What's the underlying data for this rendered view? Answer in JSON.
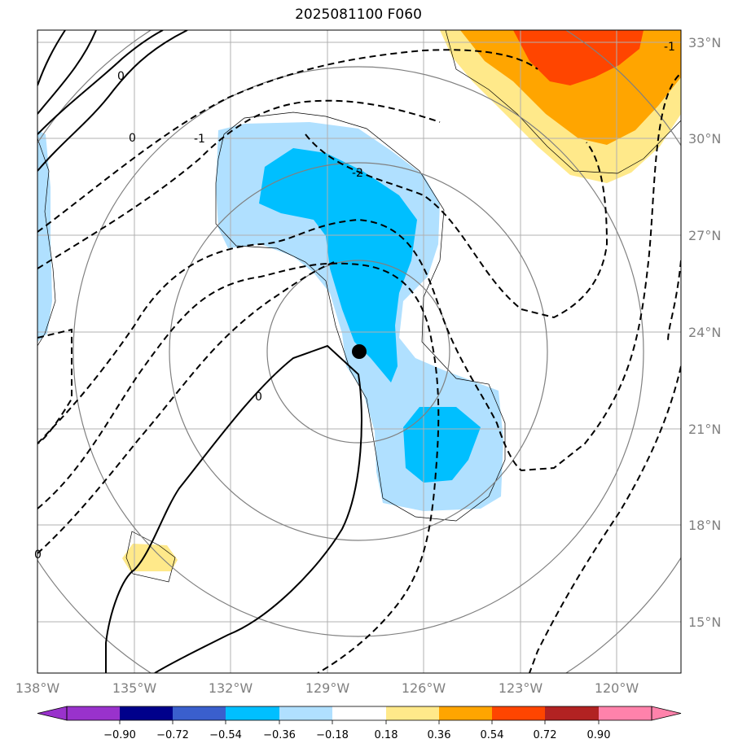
{
  "title": "2025081100 F060",
  "map": {
    "lon_range": [
      -138,
      -118
    ],
    "lat_range": [
      13.5,
      33.5
    ],
    "lon_ticks": [
      "138°W",
      "135°W",
      "132°W",
      "129°W",
      "126°W",
      "123°W",
      "120°W"
    ],
    "lat_ticks": [
      "33°N",
      "30°N",
      "27°N",
      "24°N",
      "21°N",
      "18°N",
      "15°N"
    ],
    "grid": true,
    "center_marker": {
      "lon": -128.0,
      "lat": 23.4
    },
    "contour_labels": [
      "0",
      "0",
      "-1",
      "-2",
      "0",
      "0",
      "-1"
    ]
  },
  "colorbar": {
    "levels": [
      "−0.90",
      "−0.72",
      "−0.54",
      "−0.36",
      "−0.18",
      "0.18",
      "0.36",
      "0.54",
      "0.72",
      "0.90"
    ],
    "colors": [
      "#9932cc",
      "#00008b",
      "#3a5fcd",
      "#00bfff",
      "#b0e0ff",
      "#ffffff",
      "#ffe98a",
      "#ffa500",
      "#ff4500",
      "#b22222",
      "#ff82ab"
    ]
  }
}
